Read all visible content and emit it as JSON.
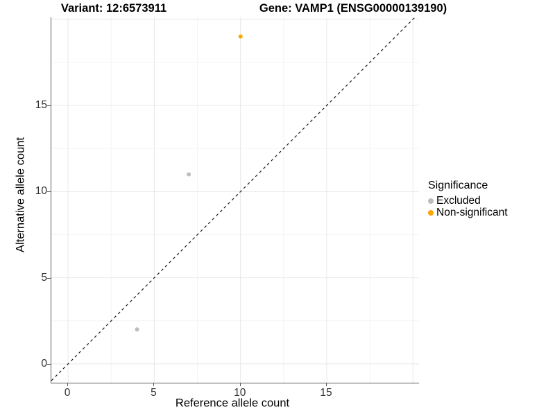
{
  "titles": {
    "variant": "Variant: 12:6573911",
    "gene": "Gene: VAMP1 (ENSG00000139190)"
  },
  "axes": {
    "x_label": "Reference allele count",
    "y_label": "Alternative allele count"
  },
  "legend": {
    "title": "Significance",
    "items": [
      {
        "label": "Excluded",
        "color": "#bdbdbd"
      },
      {
        "label": "Non-significant",
        "color": "#ffa500"
      }
    ]
  },
  "colors": {
    "excluded": "#bdbdbd",
    "non_significant": "#ffa500",
    "axis_line": "#595959",
    "grid_major": "#e8e8e8",
    "grid_minor": "#f4f4f4",
    "reference_line": "#1a1a1a",
    "tick_label": "#303030"
  },
  "chart_data": {
    "type": "scatter",
    "title": "Variant: 12:6573911 | Gene: VAMP1 (ENSG00000139190)",
    "xlabel": "Reference allele count",
    "ylabel": "Alternative allele count",
    "xlim": [
      -0.97,
      20.35
    ],
    "ylim": [
      -1.09,
      20.11
    ],
    "x_ticks": [
      0,
      5,
      10,
      15
    ],
    "y_ticks": [
      0,
      5,
      10,
      15
    ],
    "grid_major": [
      0,
      5,
      10,
      15,
      20
    ],
    "grid_minor": [
      2.5,
      7.5,
      12.5,
      17.5
    ],
    "grid": true,
    "legend_position": "right",
    "series": [
      {
        "name": "Excluded",
        "color": "#bdbdbd",
        "points": [
          [
            4,
            2
          ],
          [
            7,
            11
          ]
        ]
      },
      {
        "name": "Non-significant",
        "color": "#ffa500",
        "points": [
          [
            10,
            19
          ]
        ]
      }
    ],
    "reference_line": {
      "kind": "y=x",
      "style": "dashed",
      "color": "#1a1a1a"
    }
  }
}
